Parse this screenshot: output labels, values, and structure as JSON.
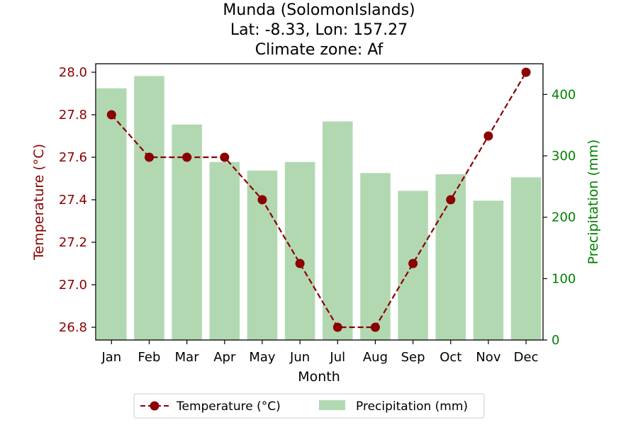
{
  "chart_data": {
    "type": "bar+line",
    "title": [
      "Munda (SolomonIslands)",
      "Lat: -8.33, Lon: 157.27",
      "Climate zone: Af"
    ],
    "xlabel": "Month",
    "categories": [
      "Jan",
      "Feb",
      "Mar",
      "Apr",
      "May",
      "Jun",
      "Jul",
      "Aug",
      "Sep",
      "Oct",
      "Nov",
      "Dec"
    ],
    "left_axis": {
      "label": "Temperature (°C)",
      "ylim": [
        26.74,
        28.04
      ],
      "ticks": [
        "26.8",
        "27.0",
        "27.2",
        "27.4",
        "27.6",
        "27.8",
        "28.0"
      ],
      "color": "#8b0000"
    },
    "right_axis": {
      "label": "Precipitation (mm)",
      "ylim": [
        0,
        450
      ],
      "ticks": [
        "0",
        "100",
        "200",
        "300",
        "400"
      ],
      "color": "#008000"
    },
    "series": [
      {
        "name": "Temperature (°C)",
        "type": "line",
        "axis": "left",
        "color": "#8b0000",
        "line_style": "dashed",
        "marker": "circle",
        "values": [
          27.8,
          27.6,
          27.6,
          27.6,
          27.4,
          27.1,
          26.8,
          26.8,
          27.1,
          27.4,
          27.7,
          28.0
        ]
      },
      {
        "name": "Precipitation (mm)",
        "type": "bar",
        "axis": "right",
        "color": "#b2d8b2",
        "values": [
          410,
          430,
          351,
          290,
          276,
          290,
          356,
          272,
          243,
          270,
          227,
          265
        ]
      }
    ],
    "legend": {
      "placement": "bottom-center",
      "entries": [
        "Temperature (°C)",
        "Precipitation (mm)"
      ]
    },
    "grid": false
  }
}
